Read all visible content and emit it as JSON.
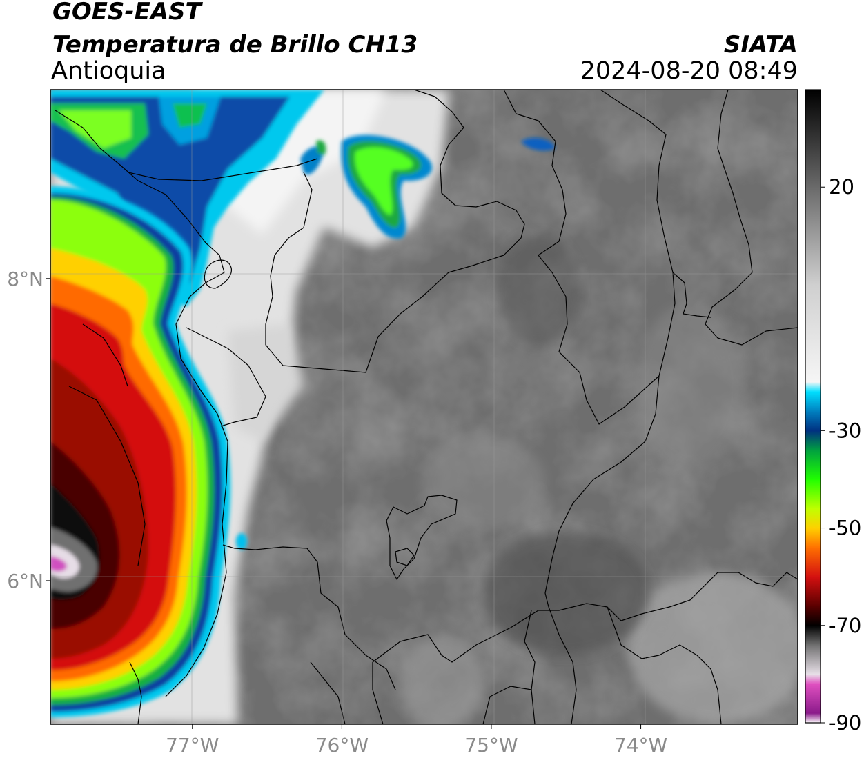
{
  "header": {
    "satellite": "GOES-EAST",
    "product": "Temperatura de Brillo CH13",
    "region": "Antioquia",
    "agency": "SIATA",
    "timestamp": "2024-08-20 08:49"
  },
  "map": {
    "lon_range": [
      -77.95,
      -72.95
    ],
    "lat_range": [
      5.05,
      9.25
    ],
    "lon_ticks": [
      {
        "value": -77,
        "label": "77°W"
      },
      {
        "value": -76,
        "label": "76°W"
      },
      {
        "value": -75,
        "label": "75°W"
      },
      {
        "value": -74,
        "label": "74°W"
      }
    ],
    "lat_ticks": [
      {
        "value": 8,
        "label": "8°N"
      },
      {
        "value": 6,
        "label": "6°N"
      }
    ]
  },
  "colorbar": {
    "range": [
      -90,
      40
    ],
    "tick_labels": [
      {
        "value": 20,
        "label": "20"
      },
      {
        "value": -30,
        "label": "-30"
      },
      {
        "value": -50,
        "label": "-50"
      },
      {
        "value": -70,
        "label": "-70"
      },
      {
        "value": -90,
        "label": "-90"
      }
    ],
    "stops": [
      {
        "value": -90,
        "color": "#ffffff"
      },
      {
        "value": -88,
        "color": "#8a1a8a"
      },
      {
        "value": -82,
        "color": "#e050c0"
      },
      {
        "value": -80,
        "color": "#e8e0e8"
      },
      {
        "value": -74,
        "color": "#707070"
      },
      {
        "value": -70,
        "color": "#000000"
      },
      {
        "value": -66,
        "color": "#5a0000"
      },
      {
        "value": -60,
        "color": "#d41010"
      },
      {
        "value": -54,
        "color": "#ff7000"
      },
      {
        "value": -50,
        "color": "#ffd000"
      },
      {
        "value": -46,
        "color": "#c0ff00"
      },
      {
        "value": -40,
        "color": "#20ff00"
      },
      {
        "value": -34,
        "color": "#00a040"
      },
      {
        "value": -30,
        "color": "#003080"
      },
      {
        "value": -26,
        "color": "#0080c0"
      },
      {
        "value": -22,
        "color": "#00e0ff"
      },
      {
        "value": -20,
        "color": "#f6f6f6"
      },
      {
        "value": 0,
        "color": "#cfcfcf"
      },
      {
        "value": 20,
        "color": "#6a6a6a"
      },
      {
        "value": 40,
        "color": "#000000"
      }
    ]
  }
}
